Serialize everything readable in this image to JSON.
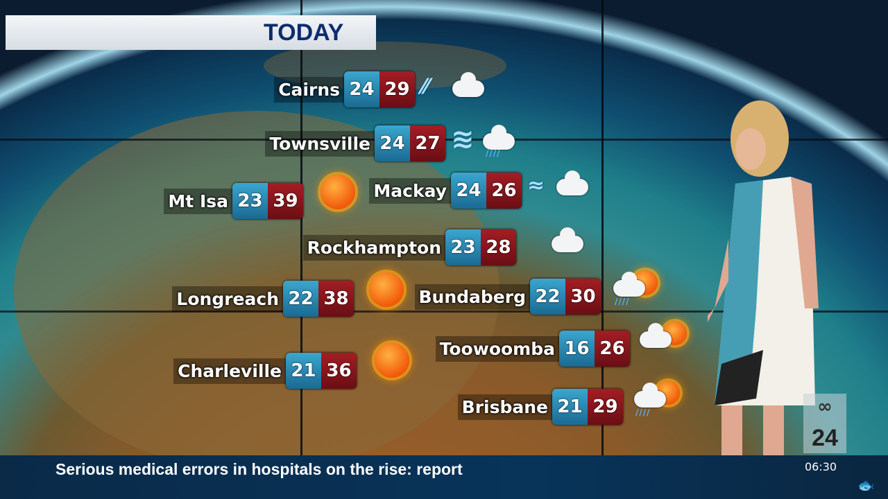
{
  "title": "TODAY",
  "cities": [
    {
      "name": "Cairns",
      "min": "24",
      "max": "29",
      "icon": "wind-cloud"
    },
    {
      "name": "Townsville",
      "min": "24",
      "max": "27",
      "icon": "wind-rain"
    },
    {
      "name": "Mt Isa",
      "min": "23",
      "max": "39",
      "icon": "sun"
    },
    {
      "name": "Mackay",
      "min": "24",
      "max": "26",
      "icon": "wind-cloud"
    },
    {
      "name": "Rockhampton",
      "min": "23",
      "max": "28",
      "icon": "cloud"
    },
    {
      "name": "Longreach",
      "min": "22",
      "max": "38",
      "icon": "sun"
    },
    {
      "name": "Bundaberg",
      "min": "22",
      "max": "30",
      "icon": "rain-sun"
    },
    {
      "name": "Toowoomba",
      "min": "16",
      "max": "26",
      "icon": "cloud-sun"
    },
    {
      "name": "Charleville",
      "min": "21",
      "max": "36",
      "icon": "sun"
    },
    {
      "name": "Brisbane",
      "min": "21",
      "max": "29",
      "icon": "rain-sun"
    }
  ],
  "ticker": {
    "headline": "Serious medical errors in hospitals on the rise: report",
    "time": "06:30"
  },
  "logo": {
    "text": "ABC 24",
    "number": "24"
  },
  "colors": {
    "min": "#2a8ab4",
    "max": "#8a141a",
    "title": "#0d2c6e",
    "ticker": "#08345a"
  }
}
